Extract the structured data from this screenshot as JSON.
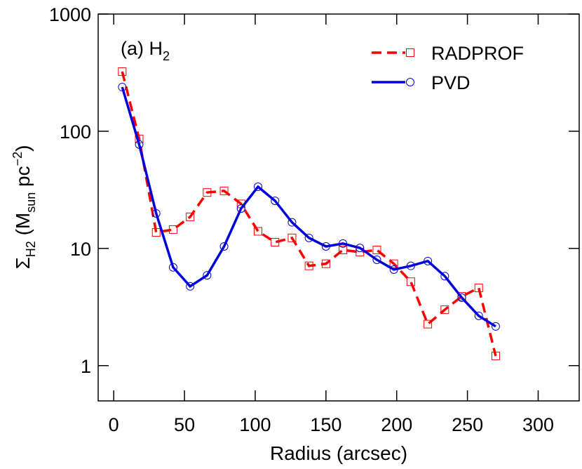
{
  "chart_data": {
    "type": "line",
    "annotation": {
      "text": "(a) H",
      "subscript": "2"
    },
    "xlabel": "Radius (arcsec)",
    "ylabel": [
      "Σ",
      "H2",
      " (M",
      "sun",
      " pc",
      "−2",
      ")"
    ],
    "x": [
      6,
      18,
      30,
      42,
      54,
      66,
      78,
      90,
      102,
      114,
      126,
      138,
      150,
      162,
      174,
      186,
      198,
      210,
      222,
      234,
      246,
      258,
      270
    ],
    "series": [
      {
        "name": "RADPROF",
        "color": "#ff0000",
        "dash": true,
        "marker": "square",
        "values": [
          323,
          86,
          13.7,
          14.5,
          18.6,
          30,
          31,
          24,
          14,
          11.3,
          12.3,
          7.1,
          7.4,
          9.7,
          9.3,
          9.7,
          7.4,
          5.2,
          2.26,
          3.0,
          3.9,
          4.6,
          1.21
        ]
      },
      {
        "name": "PVD",
        "color": "#0000dd",
        "dash": false,
        "marker": "circle",
        "values": [
          238,
          77,
          19.9,
          6.9,
          4.75,
          5.9,
          10.4,
          21.9,
          33.6,
          25.5,
          16.7,
          12.3,
          10.4,
          11,
          10.1,
          8.0,
          6.6,
          7.1,
          7.8,
          5.8,
          3.8,
          2.66,
          2.16
        ]
      }
    ],
    "xlim": [
      -11,
      329
    ],
    "xticks": [
      0,
      50,
      100,
      150,
      200,
      250,
      300
    ],
    "ylim": [
      0.5,
      1000
    ],
    "yticks": [
      1,
      10,
      100,
      1000
    ],
    "ylog": true,
    "legend": "upper right"
  }
}
